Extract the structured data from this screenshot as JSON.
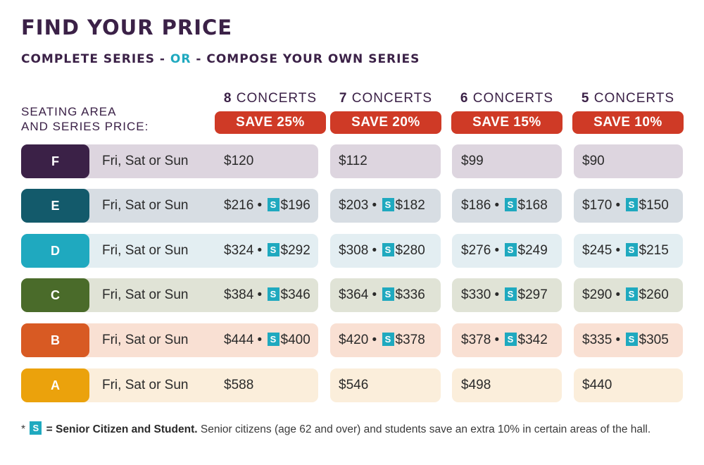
{
  "title": "FIND YOUR PRICE",
  "subtitle": {
    "part1": "COMPLETE SERIES -",
    "or": "OR",
    "part2": "- COMPOSE YOUR OWN SERIES"
  },
  "seating_label": {
    "line1": "SEATING AREA",
    "line2": "AND SERIES PRICE:"
  },
  "columns": [
    {
      "count": "8",
      "word": "CONCERTS",
      "save": "SAVE 25%"
    },
    {
      "count": "7",
      "word": "CONCERTS",
      "save": "SAVE 20%"
    },
    {
      "count": "6",
      "word": "CONCERTS",
      "save": "SAVE 15%"
    },
    {
      "count": "5",
      "word": "CONCERTS",
      "save": "SAVE 10%"
    }
  ],
  "senior_marker": "S",
  "rows": [
    {
      "area": "F",
      "days": "Fri, Sat or Sun",
      "color": "#3b2147",
      "tint": "#ddd5df",
      "prices": [
        {
          "full": "$120"
        },
        {
          "full": "$112"
        },
        {
          "full": "$99"
        },
        {
          "full": "$90"
        }
      ]
    },
    {
      "area": "E",
      "days": "Fri, Sat or Sun",
      "color": "#135a6b",
      "tint": "#d7dde3",
      "prices": [
        {
          "full": "$216",
          "senior": "$196"
        },
        {
          "full": "$203",
          "senior": "$182"
        },
        {
          "full": "$186",
          "senior": "$168"
        },
        {
          "full": "$170",
          "senior": "$150"
        }
      ]
    },
    {
      "area": "D",
      "days": "Fri, Sat or Sun",
      "color": "#1fa9bf",
      "tint": "#e3eef2",
      "prices": [
        {
          "full": "$324",
          "senior": "$292"
        },
        {
          "full": "$308",
          "senior": "$280"
        },
        {
          "full": "$276",
          "senior": "$249"
        },
        {
          "full": "$245",
          "senior": "$215"
        }
      ]
    },
    {
      "area": "C",
      "days": "Fri, Sat or Sun",
      "color": "#4a6b2a",
      "tint": "#e0e3d6",
      "prices": [
        {
          "full": "$384",
          "senior": "$346"
        },
        {
          "full": "$364",
          "senior": "$336"
        },
        {
          "full": "$330",
          "senior": "$297"
        },
        {
          "full": "$290",
          "senior": "$260"
        }
      ]
    },
    {
      "area": "B",
      "days": "Fri, Sat or Sun",
      "color": "#d85a23",
      "tint": "#f9e0d3",
      "prices": [
        {
          "full": "$444",
          "senior": "$400"
        },
        {
          "full": "$420",
          "senior": "$378"
        },
        {
          "full": "$378",
          "senior": "$342"
        },
        {
          "full": "$335",
          "senior": "$305"
        }
      ]
    },
    {
      "area": "A",
      "days": "Fri, Sat or Sun",
      "color": "#eba20c",
      "tint": "#fbeedb",
      "prices": [
        {
          "full": "$588"
        },
        {
          "full": "$546"
        },
        {
          "full": "$498"
        },
        {
          "full": "$440"
        }
      ]
    }
  ],
  "footnote": {
    "star": "*",
    "marker": "S",
    "bold": "= Senior Citizen and Student.",
    "text": "Senior citizens (age 62 and over) and students save an extra 10% in certain areas of the hall."
  }
}
